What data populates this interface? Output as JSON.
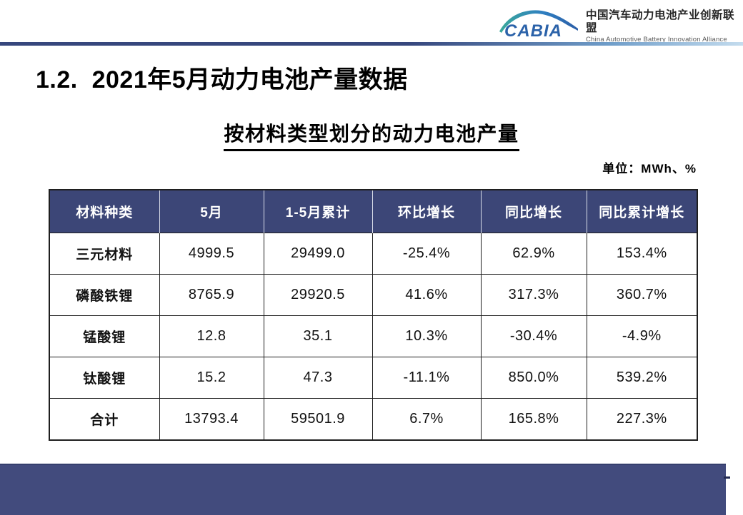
{
  "header": {
    "logo": {
      "abbr": "CABIA",
      "name_zh": "中国汽车动力电池产业创新联盟",
      "name_en": "China Automotive Battery Innovation Alliance"
    }
  },
  "title": "1.2.  2021年5月动力电池产量数据",
  "subtitle": "按材料类型划分的动力电池产量",
  "unit_label": "单位：MWh、%",
  "table": {
    "headers": [
      "材料种类",
      "5月",
      "1-5月累计",
      "环比增长",
      "同比增长",
      "同比累计增长"
    ],
    "rows": [
      [
        "三元材料",
        "4999.5",
        "29499.0",
        "-25.4%",
        "62.9%",
        "153.4%"
      ],
      [
        "磷酸铁锂",
        "8765.9",
        "29920.5",
        "41.6%",
        "317.3%",
        "360.7%"
      ],
      [
        "锰酸锂",
        "12.8",
        "35.1",
        "10.3%",
        "-30.4%",
        "-4.9%"
      ],
      [
        "钛酸锂",
        "15.2",
        "47.3",
        "-11.1%",
        "850.0%",
        "539.2%"
      ],
      [
        "合计",
        "13793.4",
        "59501.9",
        "6.7%",
        "165.8%",
        "227.3%"
      ]
    ]
  },
  "colors": {
    "table_header_bg": "#3c4677",
    "footer_bar": "#424b7d",
    "divider_dark": "#36477d",
    "divider_light": "#c4dcee",
    "logo_blue": "#2b62a9",
    "logo_green": "#3aa99a"
  }
}
